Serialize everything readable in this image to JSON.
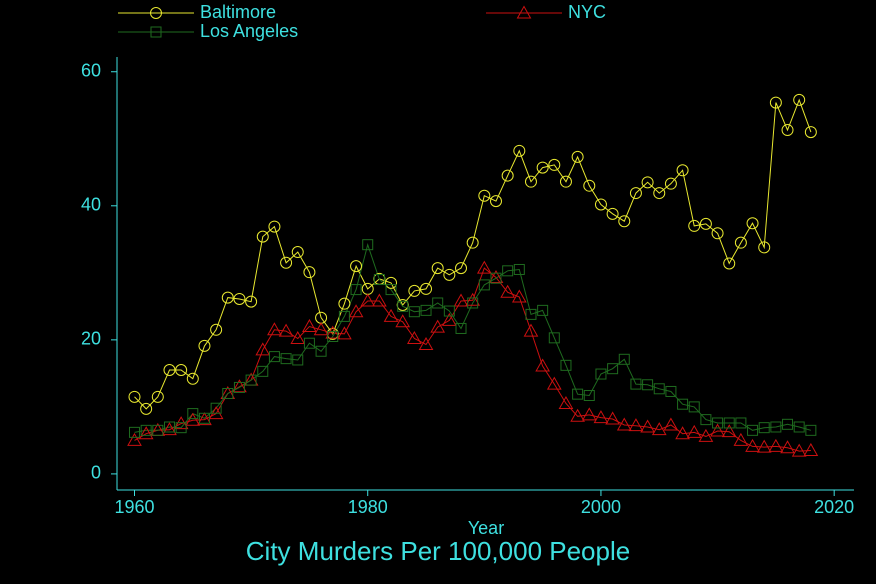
{
  "chart_data": {
    "type": "line",
    "title": "City Murders Per 100,000 People",
    "x_label": "Year",
    "x": [
      1960,
      1961,
      1962,
      1963,
      1964,
      1965,
      1966,
      1967,
      1968,
      1969,
      1970,
      1971,
      1972,
      1973,
      1974,
      1975,
      1976,
      1977,
      1978,
      1979,
      1980,
      1981,
      1982,
      1983,
      1984,
      1985,
      1986,
      1987,
      1988,
      1989,
      1990,
      1991,
      1992,
      1993,
      1994,
      1995,
      1996,
      1997,
      1998,
      1999,
      2000,
      2001,
      2002,
      2003,
      2004,
      2005,
      2006,
      2007,
      2008,
      2009,
      2010,
      2011,
      2012,
      2013,
      2014,
      2015,
      2016,
      2017,
      2018
    ],
    "series": [
      {
        "name": "Baltimore",
        "color": "#e8e830",
        "marker": "circle",
        "values": [
          11.5,
          9.7,
          11.5,
          15.5,
          15.5,
          14.2,
          19.1,
          21.5,
          26.3,
          26.1,
          25.7,
          35.4,
          36.9,
          31.5,
          33.1,
          30.1,
          23.3,
          20.9,
          25.4,
          31.0,
          27.6,
          29.1,
          28.5,
          25.2,
          27.3,
          27.6,
          30.7,
          29.7,
          30.7,
          34.5,
          41.5,
          40.7,
          44.5,
          48.2,
          43.6,
          45.7,
          46.1,
          43.6,
          47.3,
          43.0,
          40.2,
          38.8,
          37.7,
          41.9,
          43.5,
          41.9,
          43.3,
          45.3,
          37.0,
          37.3,
          35.9,
          31.4,
          34.5,
          37.4,
          33.8,
          55.4,
          51.3,
          55.8,
          51.0
        ]
      },
      {
        "name": "NYC",
        "color": "#cc1010",
        "marker": "triangle",
        "values": [
          5.0,
          6.0,
          6.5,
          6.6,
          7.5,
          8.0,
          8.1,
          9.0,
          12.0,
          13.0,
          14.0,
          18.5,
          21.5,
          21.3,
          20.2,
          22.0,
          21.5,
          21.0,
          20.9,
          24.2,
          25.8,
          25.8,
          23.5,
          22.7,
          20.2,
          19.3,
          21.9,
          22.9,
          25.8,
          25.9,
          30.7,
          29.3,
          27.1,
          26.4,
          21.3,
          16.1,
          13.4,
          10.5,
          8.6,
          8.8,
          8.4,
          8.2,
          7.3,
          7.2,
          7.0,
          6.6,
          7.3,
          6.0,
          6.2,
          5.6,
          6.4,
          6.3,
          5.0,
          4.1,
          4.0,
          4.1,
          3.9,
          3.4,
          3.5
        ]
      },
      {
        "name": "Los Angeles",
        "color": "#1f6b1f",
        "marker": "square",
        "values": [
          6.2,
          6.5,
          6.5,
          7.0,
          6.9,
          9.0,
          8.3,
          9.8,
          12.0,
          12.9,
          14.0,
          15.3,
          17.5,
          17.2,
          17.0,
          19.5,
          18.3,
          20.5,
          23.5,
          27.5,
          34.2,
          29.0,
          27.5,
          25.0,
          24.2,
          24.4,
          25.5,
          24.3,
          21.7,
          25.5,
          28.2,
          29.2,
          30.3,
          30.5,
          23.8,
          24.4,
          20.3,
          16.2,
          11.9,
          11.7,
          14.9,
          15.7,
          17.1,
          13.4,
          13.3,
          12.7,
          12.3,
          10.4,
          10.0,
          8.1,
          7.6,
          7.6,
          7.6,
          6.5,
          6.9,
          7.0,
          7.4,
          7.0,
          6.5
        ]
      }
    ],
    "xlim": [
      1958.5,
      2021.7
    ],
    "xticks": [
      1960,
      1980,
      2000,
      2020
    ],
    "ylim": [
      -2.4,
      62.2
    ],
    "yticks": [
      0,
      20,
      40,
      60
    ],
    "axis_color": "#3ee0e0",
    "grid": false,
    "legend": "top"
  }
}
